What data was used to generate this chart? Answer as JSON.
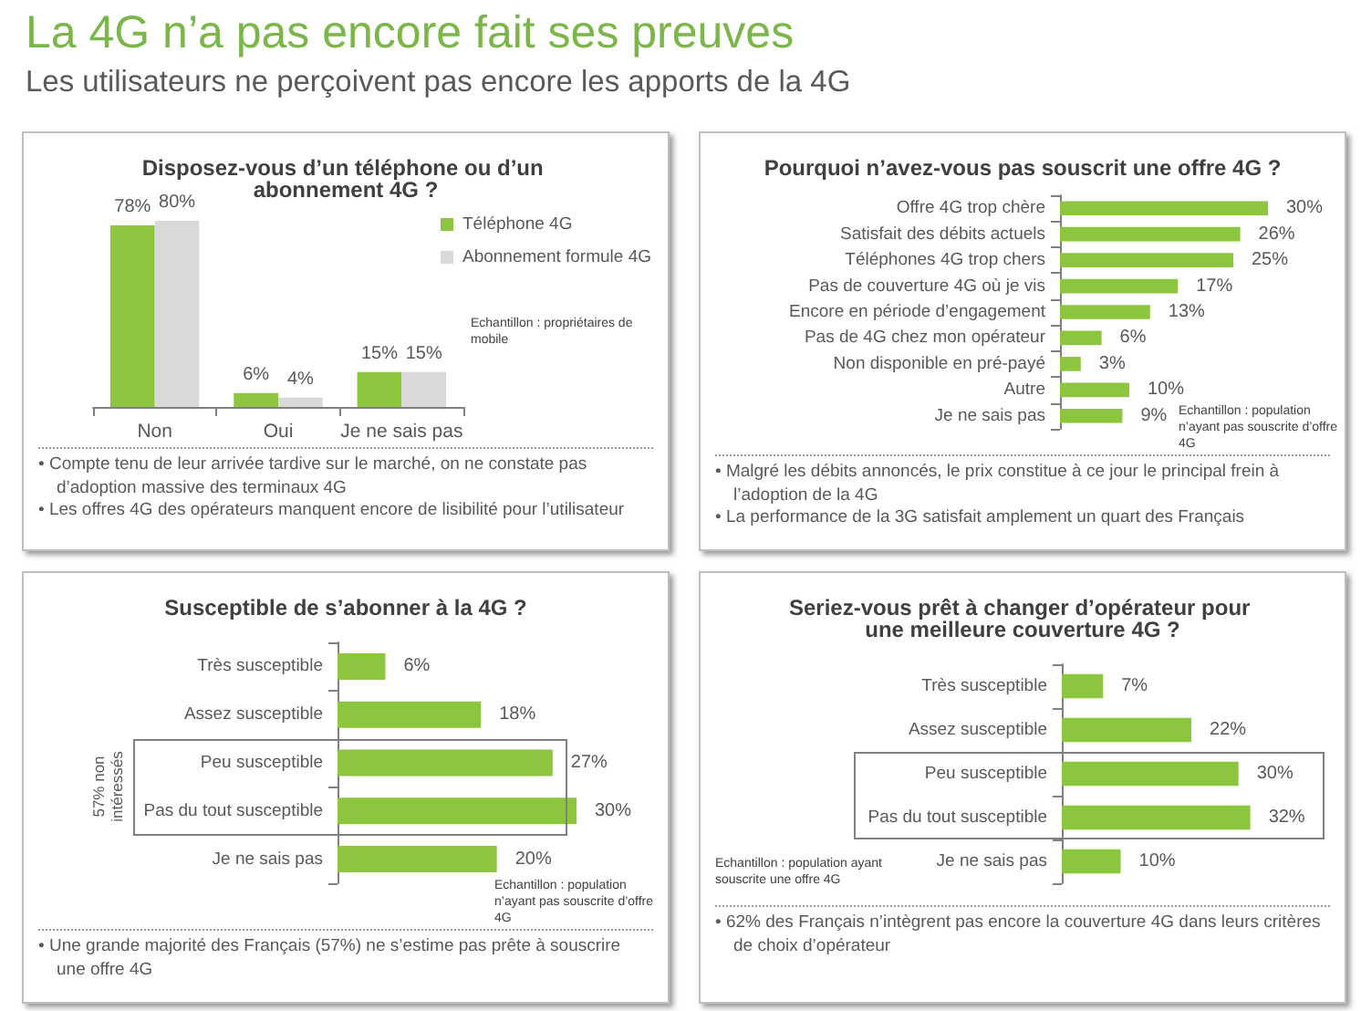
{
  "chart_data": [
    {
      "type": "other",
      "title": "La 4G n’a pas encore fait ses preuves",
      "subtitle": "Les utilisateurs ne perçoivent pas encore les apports de la 4G"
    },
    {
      "type": "bar",
      "title": "Disposez-vous d’un téléphone ou d’un abonnement 4G ?",
      "categories": [
        "Non",
        "Oui",
        "Je ne sais pas"
      ],
      "series": [
        {
          "name": "Téléphone 4G",
          "color": "#8cc63f",
          "values": [
            78,
            6,
            15
          ],
          "value_labels": [
            "78%",
            "6%",
            "15%"
          ]
        },
        {
          "name": "Abonnement formule 4G",
          "color": "#d9d9d9",
          "values": [
            80,
            4,
            15
          ],
          "value_labels": [
            "80%",
            "4%",
            "15%"
          ]
        }
      ],
      "legend": "right",
      "annotations": [
        "Echantillon : propriétaires de mobile",
        "• Compte tenu de leur arrivée tardive sur le marché, on ne constate pas d’adoption massive des terminaux 4G",
        "• Les offres 4G des opérateurs manquent encore de lisibilité pour l’utilisateur"
      ]
    },
    {
      "type": "bar",
      "orientation": "horizontal",
      "title": "Pourquoi n’avez-vous pas souscrit une offre 4G ?",
      "categories": [
        "Offre 4G trop chère",
        "Satisfait des débits actuels",
        "Téléphones 4G trop chers",
        "Pas de couverture 4G où je vis",
        "Encore en période d’engagement",
        "Pas de 4G chez mon opérateur",
        "Non disponible en pré-payé",
        "Autre",
        "Je ne sais pas"
      ],
      "color": "#8cc63f",
      "values": [
        30,
        26,
        25,
        17,
        13,
        6,
        3,
        10,
        9
      ],
      "value_labels": [
        "30%",
        "26%",
        "25%",
        "17%",
        "13%",
        "6%",
        "3%",
        "10%",
        "9%"
      ],
      "annotations": [
        "Echantillon : population n’ayant pas souscrite d’offre 4G",
        "• Malgré les débits annoncés, le prix constitue à ce jour le principal frein à l’adoption de la 4G",
        "• La performance de la 3G satisfait amplement un quart des Français"
      ]
    },
    {
      "type": "bar",
      "orientation": "horizontal",
      "title": "Susceptible de s’abonner à la 4G ?",
      "categories": [
        "Très susceptible",
        "Assez susceptible",
        "Peu susceptible",
        "Pas du tout susceptible",
        "Je ne sais pas"
      ],
      "color": "#8cc63f",
      "values": [
        6,
        18,
        27,
        30,
        20
      ],
      "value_labels": [
        "6%",
        "18%",
        "27%",
        "30%",
        "20%"
      ],
      "annotations": [
        "Echantillon : population n’ayant pas souscrite d’offre 4G",
        "• Une grande majorité des Français (57%) ne s’estime pas prête à souscrire une offre 4G",
        "57% non intéressés"
      ]
    },
    {
      "type": "bar",
      "orientation": "horizontal",
      "title": "Seriez-vous prêt à changer d’opérateur pour une meilleure couverture 4G ?",
      "categories": [
        "Très susceptible",
        "Assez susceptible",
        "Peu susceptible",
        "Pas du tout susceptible",
        "Je ne sais pas"
      ],
      "color": "#8cc63f",
      "values": [
        7,
        22,
        30,
        32,
        10
      ],
      "value_labels": [
        "7%",
        "22%",
        "30%",
        "32%",
        "10%"
      ],
      "annotations": [
        "Echantillon : population ayant souscrite une offre 4G",
        "• 62% des Français n’intègrent pas encore la couverture 4G dans leurs critères de choix d’opérateur"
      ]
    }
  ]
}
